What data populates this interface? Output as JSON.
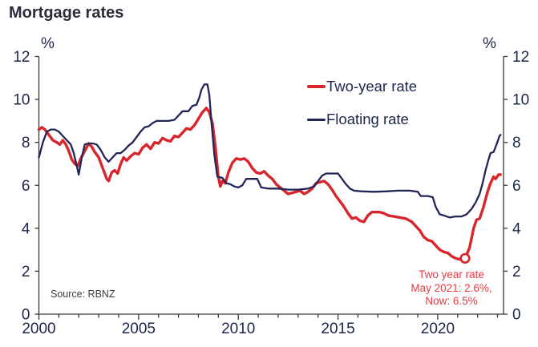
{
  "title": "Mortgage rates",
  "source": "Source: RBNZ",
  "chart_data": {
    "type": "line",
    "title": "Mortgage rates",
    "unit": "%",
    "xlabel": "",
    "ylabel": "%",
    "xlim": [
      2000,
      2023.3
    ],
    "ylim": [
      0,
      12
    ],
    "yticks": [
      0,
      2,
      4,
      6,
      8,
      10,
      12
    ],
    "xticks_minor_years": 1,
    "xticks_labeled": [
      2000,
      2005,
      2010,
      2015,
      2020
    ],
    "grid": false,
    "legend_position": "inside-top-right",
    "axis_color": "#3a3a3a",
    "tick_label_color": "#1d2649",
    "series": [
      {
        "name": "Two-year rate",
        "color": "#d8262c",
        "line_width": 3.4,
        "points": [
          [
            2000.0,
            8.6
          ],
          [
            2000.15,
            8.7
          ],
          [
            2000.3,
            8.6
          ],
          [
            2000.5,
            8.35
          ],
          [
            2000.7,
            8.1
          ],
          [
            2000.9,
            8.0
          ],
          [
            2001.05,
            7.9
          ],
          [
            2001.2,
            8.1
          ],
          [
            2001.35,
            7.9
          ],
          [
            2001.5,
            7.6
          ],
          [
            2001.65,
            7.2
          ],
          [
            2001.8,
            7.0
          ],
          [
            2001.95,
            6.9
          ],
          [
            2002.1,
            7.25
          ],
          [
            2002.3,
            7.6
          ],
          [
            2002.5,
            7.95
          ],
          [
            2002.65,
            7.8
          ],
          [
            2002.8,
            7.55
          ],
          [
            2003.0,
            7.3
          ],
          [
            2003.2,
            6.8
          ],
          [
            2003.4,
            6.3
          ],
          [
            2003.5,
            6.2
          ],
          [
            2003.65,
            6.6
          ],
          [
            2003.8,
            6.7
          ],
          [
            2003.95,
            6.55
          ],
          [
            2004.1,
            7.0
          ],
          [
            2004.25,
            7.3
          ],
          [
            2004.4,
            7.15
          ],
          [
            2004.6,
            7.35
          ],
          [
            2004.8,
            7.5
          ],
          [
            2005.0,
            7.45
          ],
          [
            2005.2,
            7.75
          ],
          [
            2005.4,
            7.9
          ],
          [
            2005.6,
            7.7
          ],
          [
            2005.8,
            8.0
          ],
          [
            2006.0,
            7.95
          ],
          [
            2006.2,
            8.2
          ],
          [
            2006.4,
            8.1
          ],
          [
            2006.6,
            8.05
          ],
          [
            2006.8,
            8.3
          ],
          [
            2007.0,
            8.25
          ],
          [
            2007.2,
            8.45
          ],
          [
            2007.4,
            8.65
          ],
          [
            2007.6,
            8.6
          ],
          [
            2007.8,
            8.8
          ],
          [
            2008.0,
            9.1
          ],
          [
            2008.2,
            9.4
          ],
          [
            2008.4,
            9.6
          ],
          [
            2008.55,
            9.4
          ],
          [
            2008.7,
            8.9
          ],
          [
            2008.85,
            7.8
          ],
          [
            2009.0,
            6.4
          ],
          [
            2009.1,
            5.95
          ],
          [
            2009.2,
            6.2
          ],
          [
            2009.35,
            6.1
          ],
          [
            2009.5,
            6.6
          ],
          [
            2009.7,
            7.05
          ],
          [
            2009.9,
            7.25
          ],
          [
            2010.1,
            7.2
          ],
          [
            2010.3,
            7.25
          ],
          [
            2010.5,
            7.1
          ],
          [
            2010.7,
            6.8
          ],
          [
            2010.9,
            6.6
          ],
          [
            2011.1,
            6.55
          ],
          [
            2011.3,
            6.65
          ],
          [
            2011.5,
            6.45
          ],
          [
            2011.7,
            6.3
          ],
          [
            2011.9,
            6.05
          ],
          [
            2012.1,
            5.9
          ],
          [
            2012.3,
            5.75
          ],
          [
            2012.5,
            5.6
          ],
          [
            2012.7,
            5.65
          ],
          [
            2012.9,
            5.7
          ],
          [
            2013.1,
            5.75
          ],
          [
            2013.3,
            5.6
          ],
          [
            2013.5,
            5.7
          ],
          [
            2013.7,
            5.85
          ],
          [
            2013.9,
            6.1
          ],
          [
            2014.1,
            6.15
          ],
          [
            2014.3,
            6.2
          ],
          [
            2014.5,
            6.05
          ],
          [
            2014.7,
            5.8
          ],
          [
            2014.9,
            5.5
          ],
          [
            2015.1,
            5.25
          ],
          [
            2015.3,
            5.0
          ],
          [
            2015.5,
            4.7
          ],
          [
            2015.7,
            4.45
          ],
          [
            2015.9,
            4.5
          ],
          [
            2016.1,
            4.35
          ],
          [
            2016.3,
            4.3
          ],
          [
            2016.5,
            4.6
          ],
          [
            2016.7,
            4.75
          ],
          [
            2016.9,
            4.75
          ],
          [
            2017.1,
            4.75
          ],
          [
            2017.3,
            4.7
          ],
          [
            2017.5,
            4.6
          ],
          [
            2017.8,
            4.55
          ],
          [
            2018.1,
            4.5
          ],
          [
            2018.4,
            4.45
          ],
          [
            2018.7,
            4.3
          ],
          [
            2018.9,
            4.1
          ],
          [
            2019.1,
            3.9
          ],
          [
            2019.3,
            3.6
          ],
          [
            2019.5,
            3.45
          ],
          [
            2019.7,
            3.4
          ],
          [
            2019.9,
            3.2
          ],
          [
            2020.1,
            3.0
          ],
          [
            2020.3,
            2.9
          ],
          [
            2020.5,
            2.85
          ],
          [
            2020.7,
            2.7
          ],
          [
            2020.9,
            2.6
          ],
          [
            2021.1,
            2.55
          ],
          [
            2021.37,
            2.6
          ],
          [
            2021.6,
            3.1
          ],
          [
            2021.8,
            4.0
          ],
          [
            2021.95,
            4.4
          ],
          [
            2022.1,
            4.45
          ],
          [
            2022.3,
            5.0
          ],
          [
            2022.5,
            5.7
          ],
          [
            2022.65,
            6.1
          ],
          [
            2022.8,
            6.4
          ],
          [
            2022.9,
            6.3
          ],
          [
            2023.05,
            6.5
          ],
          [
            2023.15,
            6.5
          ]
        ]
      },
      {
        "name": "Floating rate",
        "color": "#232559",
        "line_width": 2.3,
        "points": [
          [
            2000.0,
            7.3
          ],
          [
            2000.2,
            8.0
          ],
          [
            2000.4,
            8.5
          ],
          [
            2000.6,
            8.6
          ],
          [
            2000.8,
            8.6
          ],
          [
            2001.0,
            8.5
          ],
          [
            2001.2,
            8.3
          ],
          [
            2001.4,
            8.1
          ],
          [
            2001.6,
            7.9
          ],
          [
            2001.75,
            7.5
          ],
          [
            2001.9,
            6.9
          ],
          [
            2002.0,
            6.5
          ],
          [
            2002.15,
            7.3
          ],
          [
            2002.3,
            7.9
          ],
          [
            2002.5,
            7.95
          ],
          [
            2002.7,
            7.95
          ],
          [
            2002.9,
            7.9
          ],
          [
            2003.1,
            7.65
          ],
          [
            2003.3,
            7.3
          ],
          [
            2003.5,
            7.1
          ],
          [
            2003.7,
            7.3
          ],
          [
            2003.9,
            7.5
          ],
          [
            2004.1,
            7.5
          ],
          [
            2004.3,
            7.65
          ],
          [
            2004.5,
            7.85
          ],
          [
            2004.7,
            8.0
          ],
          [
            2004.9,
            8.25
          ],
          [
            2005.1,
            8.5
          ],
          [
            2005.3,
            8.7
          ],
          [
            2005.5,
            8.75
          ],
          [
            2005.7,
            8.9
          ],
          [
            2005.9,
            9.0
          ],
          [
            2006.2,
            9.0
          ],
          [
            2006.5,
            9.0
          ],
          [
            2006.8,
            9.05
          ],
          [
            2007.0,
            9.25
          ],
          [
            2007.2,
            9.45
          ],
          [
            2007.5,
            9.45
          ],
          [
            2007.7,
            9.7
          ],
          [
            2007.9,
            9.75
          ],
          [
            2008.05,
            10.1
          ],
          [
            2008.15,
            10.45
          ],
          [
            2008.3,
            10.7
          ],
          [
            2008.45,
            10.7
          ],
          [
            2008.55,
            10.2
          ],
          [
            2008.65,
            9.0
          ],
          [
            2008.8,
            7.4
          ],
          [
            2008.95,
            6.4
          ],
          [
            2009.2,
            6.35
          ],
          [
            2009.4,
            6.1
          ],
          [
            2009.6,
            6.05
          ],
          [
            2009.8,
            5.95
          ],
          [
            2010.0,
            5.9
          ],
          [
            2010.2,
            6.0
          ],
          [
            2010.4,
            6.3
          ],
          [
            2010.7,
            6.3
          ],
          [
            2010.95,
            6.3
          ],
          [
            2011.15,
            5.9
          ],
          [
            2011.5,
            5.85
          ],
          [
            2012.0,
            5.85
          ],
          [
            2012.5,
            5.8
          ],
          [
            2013.0,
            5.8
          ],
          [
            2013.5,
            5.85
          ],
          [
            2013.8,
            5.95
          ],
          [
            2014.0,
            6.2
          ],
          [
            2014.2,
            6.45
          ],
          [
            2014.4,
            6.55
          ],
          [
            2014.7,
            6.55
          ],
          [
            2015.0,
            6.55
          ],
          [
            2015.2,
            6.3
          ],
          [
            2015.4,
            6.05
          ],
          [
            2015.6,
            5.85
          ],
          [
            2015.8,
            5.75
          ],
          [
            2016.2,
            5.72
          ],
          [
            2016.8,
            5.7
          ],
          [
            2017.4,
            5.72
          ],
          [
            2018.0,
            5.75
          ],
          [
            2018.6,
            5.75
          ],
          [
            2019.0,
            5.7
          ],
          [
            2019.15,
            5.5
          ],
          [
            2019.5,
            5.5
          ],
          [
            2019.75,
            5.45
          ],
          [
            2019.9,
            5.0
          ],
          [
            2020.1,
            4.65
          ],
          [
            2020.3,
            4.6
          ],
          [
            2020.6,
            4.5
          ],
          [
            2020.9,
            4.55
          ],
          [
            2021.2,
            4.55
          ],
          [
            2021.45,
            4.65
          ],
          [
            2021.7,
            4.9
          ],
          [
            2021.9,
            5.2
          ],
          [
            2022.1,
            5.6
          ],
          [
            2022.25,
            6.1
          ],
          [
            2022.4,
            6.7
          ],
          [
            2022.55,
            7.2
          ],
          [
            2022.65,
            7.5
          ],
          [
            2022.8,
            7.55
          ],
          [
            2022.95,
            7.9
          ],
          [
            2023.1,
            8.3
          ],
          [
            2023.15,
            8.35
          ]
        ]
      }
    ],
    "annotation": {
      "lines": [
        "Two year rate",
        "May 2021: 2.6%,",
        "Now: 6.5%"
      ],
      "color": "#e73a41",
      "marker_point": {
        "x": 2021.37,
        "y": 2.6
      },
      "marker_style": "open-circle"
    }
  }
}
